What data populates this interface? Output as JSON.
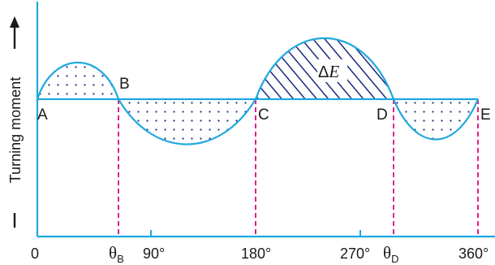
{
  "diagram": {
    "y_axis_label": "Turning moment",
    "point_labels": {
      "A": "A",
      "B": "B",
      "C": "C",
      "D": "D",
      "E": "E"
    },
    "x_ticks": {
      "zero": "0",
      "theta_b": "θ",
      "theta_b_sub": "B",
      "deg_90": "90°",
      "deg_180": "180°",
      "deg_270": "270°",
      "theta_d": "θ",
      "theta_d_sub": "D",
      "deg_360": "360°"
    },
    "energy_label": {
      "delta": "Δ",
      "symbol": "E"
    }
  },
  "colors": {
    "curve": "#1fa8de",
    "axes": "#1fa8de",
    "mean_line": "#1fa8de",
    "dashed": "#e0218a",
    "hatch": "#1b2a7a",
    "dots": "#1b2a7a",
    "text": "#1a1a1a"
  }
}
